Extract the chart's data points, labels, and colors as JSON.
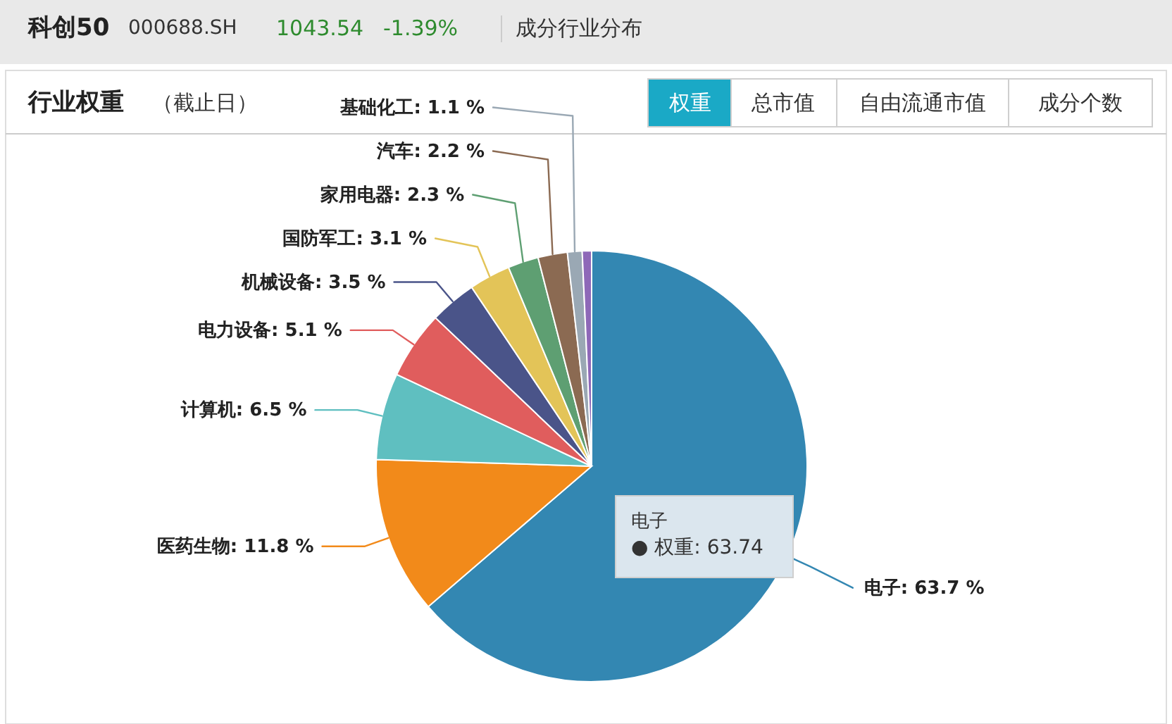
{
  "chart_data": {
    "type": "pie",
    "title": "行业权重",
    "subtitle": "（截止日）",
    "categories": [
      "电子",
      "医药生物",
      "计算机",
      "电力设备",
      "机械设备",
      "国防军工",
      "家用电器",
      "汽车",
      "基础化工",
      null
    ],
    "values": [
      63.7,
      11.8,
      6.5,
      5.1,
      3.5,
      3.1,
      2.3,
      2.2,
      1.1,
      0.7
    ],
    "value_labels": [
      ": 63.7 %",
      ": 11.8 %",
      ": 6.5 %",
      ": 5.1 %",
      ": 3.5 %",
      ": 3.1 %",
      ": 2.3 %",
      ": 2.2 %",
      ": 1.1 %",
      null
    ],
    "colors": [
      "#3387b2",
      "#f28a1a",
      "#5fbfc0",
      "#e05d5d",
      "#4a5489",
      "#e3c458",
      "#5e9f72",
      "#8b6a52",
      "#9aa8b4",
      "#8e68b8"
    ],
    "annotations": [
      "科创50",
      "000688.SH",
      "1043.54",
      "-1.39%",
      "成分行业分布",
      "权重",
      "总市值",
      "自由流通市值",
      "成分个数",
      "电子",
      "● 权重: 63.74"
    ]
  }
}
